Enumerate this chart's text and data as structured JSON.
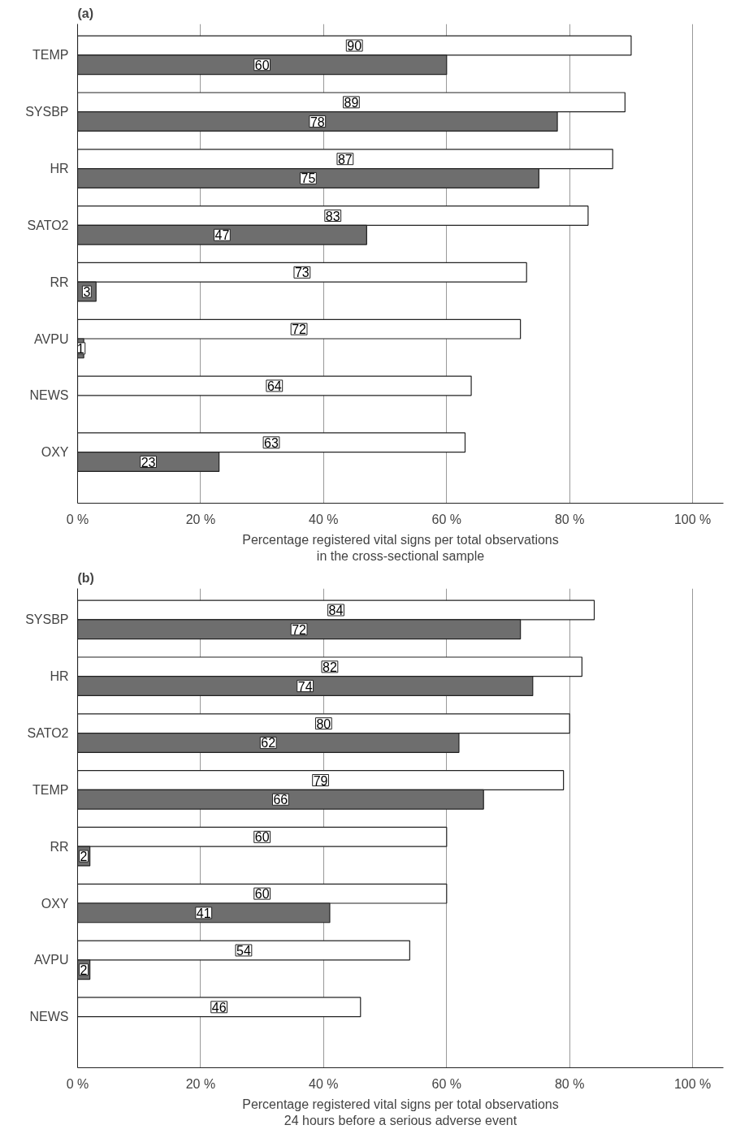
{
  "chart_data": [
    {
      "type": "bar",
      "orientation": "horizontal",
      "title": "(a)",
      "xlabel": "Percentage registered vital signs per total observations\nin the cross-sectional sample",
      "categories": [
        "TEMP",
        "SYSBP",
        "HR",
        "SATO2",
        "RR",
        "AVPU",
        "NEWS",
        "OXY"
      ],
      "series": [
        {
          "color": "#ffffff",
          "values": [
            90,
            89,
            87,
            83,
            73,
            72,
            64,
            63
          ]
        },
        {
          "color": "#6e6e6e",
          "values": [
            60,
            78,
            75,
            47,
            3,
            1,
            null,
            23
          ]
        }
      ],
      "xlim": [
        0,
        105
      ],
      "xticks": [
        {
          "value": 0,
          "label": "0 %"
        },
        {
          "value": 20,
          "label": "20 %"
        },
        {
          "value": 40,
          "label": "40 %"
        },
        {
          "value": 60,
          "label": "60 %"
        },
        {
          "value": 80,
          "label": "80 %"
        },
        {
          "value": 100,
          "label": "100 %"
        }
      ],
      "grid": "x",
      "data_labels": true
    },
    {
      "type": "bar",
      "orientation": "horizontal",
      "title": "(b)",
      "xlabel": "Percentage registered vital signs per total observations\n24 hours before a serious adverse event",
      "categories": [
        "SYSBP",
        "HR",
        "SATO2",
        "TEMP",
        "RR",
        "OXY",
        "AVPU",
        "NEWS"
      ],
      "series": [
        {
          "color": "#ffffff",
          "values": [
            84,
            82,
            80,
            79,
            60,
            60,
            54,
            46
          ]
        },
        {
          "color": "#6e6e6e",
          "values": [
            72,
            74,
            62,
            66,
            2,
            41,
            2,
            null
          ]
        }
      ],
      "xlim": [
        0,
        105
      ],
      "xticks": [
        {
          "value": 0,
          "label": "0 %"
        },
        {
          "value": 20,
          "label": "20 %"
        },
        {
          "value": 40,
          "label": "40 %"
        },
        {
          "value": 60,
          "label": "60 %"
        },
        {
          "value": 80,
          "label": "80 %"
        },
        {
          "value": 100,
          "label": "100 %"
        }
      ],
      "grid": "x",
      "data_labels": true
    }
  ]
}
